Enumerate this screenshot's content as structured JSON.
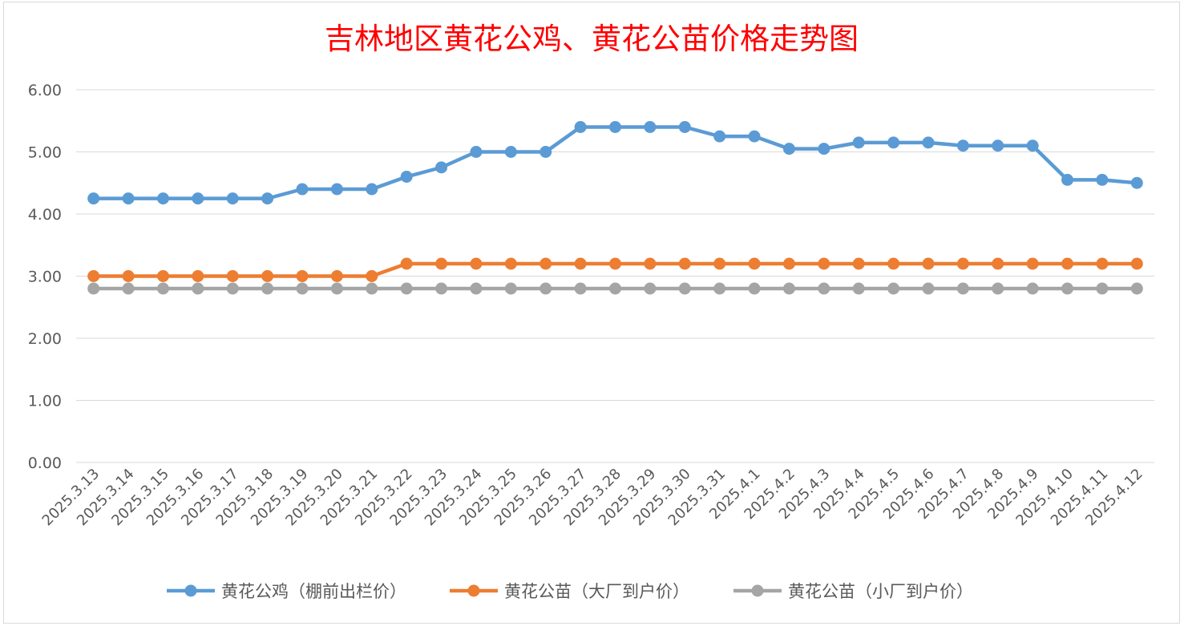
{
  "chart_data": {
    "type": "line",
    "title": "吉林地区黄花公鸡、黄花公苗价格走势图",
    "title_color": "#ff0000",
    "xlabel": "",
    "ylabel": "",
    "ylim": [
      0,
      6
    ],
    "yticks": [
      "0.00",
      "1.00",
      "2.00",
      "3.00",
      "4.00",
      "5.00",
      "6.00"
    ],
    "grid": true,
    "legend_position": "bottom",
    "categories": [
      "2025.3.13",
      "2025.3.14",
      "2025.3.15",
      "2025.3.16",
      "2025.3.17",
      "2025.3.18",
      "2025.3.19",
      "2025.3.20",
      "2025.3.21",
      "2025.3.22",
      "2025.3.23",
      "2025.3.24",
      "2025.3.25",
      "2025.3.26",
      "2025.3.27",
      "2025.3.28",
      "2025.3.29",
      "2025.3.30",
      "2025.3.31",
      "2025.4.1",
      "2025.4.2",
      "2025.4.3",
      "2025.4.4",
      "2025.4.5",
      "2025.4.6",
      "2025.4.7",
      "2025.4.8",
      "2025.4.9",
      "2025.4.10",
      "2025.4.11",
      "2025.4.12"
    ],
    "series": [
      {
        "name": "黄花公鸡（棚前出栏价）",
        "color": "#5b9bd5",
        "values": [
          4.25,
          4.25,
          4.25,
          4.25,
          4.25,
          4.25,
          4.4,
          4.4,
          4.4,
          4.6,
          4.75,
          5.0,
          5.0,
          5.0,
          5.4,
          5.4,
          5.4,
          5.4,
          5.25,
          5.25,
          5.05,
          5.05,
          5.15,
          5.15,
          5.15,
          5.1,
          5.1,
          5.1,
          4.55,
          4.55,
          4.5
        ]
      },
      {
        "name": "黄花公苗（大厂到户价）",
        "color": "#ed7d31",
        "values": [
          3.0,
          3.0,
          3.0,
          3.0,
          3.0,
          3.0,
          3.0,
          3.0,
          3.0,
          3.2,
          3.2,
          3.2,
          3.2,
          3.2,
          3.2,
          3.2,
          3.2,
          3.2,
          3.2,
          3.2,
          3.2,
          3.2,
          3.2,
          3.2,
          3.2,
          3.2,
          3.2,
          3.2,
          3.2,
          3.2,
          3.2
        ]
      },
      {
        "name": "黄花公苗（小厂到户价）",
        "color": "#a5a5a5",
        "values": [
          2.8,
          2.8,
          2.8,
          2.8,
          2.8,
          2.8,
          2.8,
          2.8,
          2.8,
          2.8,
          2.8,
          2.8,
          2.8,
          2.8,
          2.8,
          2.8,
          2.8,
          2.8,
          2.8,
          2.8,
          2.8,
          2.8,
          2.8,
          2.8,
          2.8,
          2.8,
          2.8,
          2.8,
          2.8,
          2.8,
          2.8
        ]
      }
    ]
  }
}
